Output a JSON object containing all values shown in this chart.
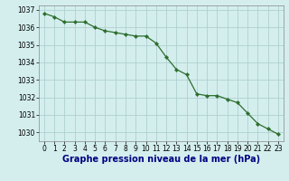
{
  "x": [
    0,
    1,
    2,
    3,
    4,
    5,
    6,
    7,
    8,
    9,
    10,
    11,
    12,
    13,
    14,
    15,
    16,
    17,
    18,
    19,
    20,
    21,
    22,
    23
  ],
  "y": [
    1036.8,
    1036.6,
    1036.3,
    1036.3,
    1036.3,
    1036.0,
    1035.8,
    1035.7,
    1035.6,
    1035.5,
    1035.5,
    1035.1,
    1034.3,
    1033.6,
    1033.3,
    1032.2,
    1032.1,
    1032.1,
    1031.9,
    1031.7,
    1031.1,
    1030.5,
    1030.2,
    1029.9
  ],
  "line_color": "#2d6e2d",
  "marker_color": "#2d6e2d",
  "bg_color": "#d4eeee",
  "grid_color": "#b0d0d0",
  "ylim_min": 1029.5,
  "ylim_max": 1037.25,
  "yticks": [
    1030,
    1031,
    1032,
    1033,
    1034,
    1035,
    1036,
    1037
  ],
  "xticks": [
    0,
    1,
    2,
    3,
    4,
    5,
    6,
    7,
    8,
    9,
    10,
    11,
    12,
    13,
    14,
    15,
    16,
    17,
    18,
    19,
    20,
    21,
    22,
    23
  ],
  "tick_fontsize": 5.5,
  "label_fontsize": 7.0,
  "label_color": "#000080",
  "tick_color": "#000000",
  "xlabel": "Graphe pression niveau de la mer (hPa)"
}
